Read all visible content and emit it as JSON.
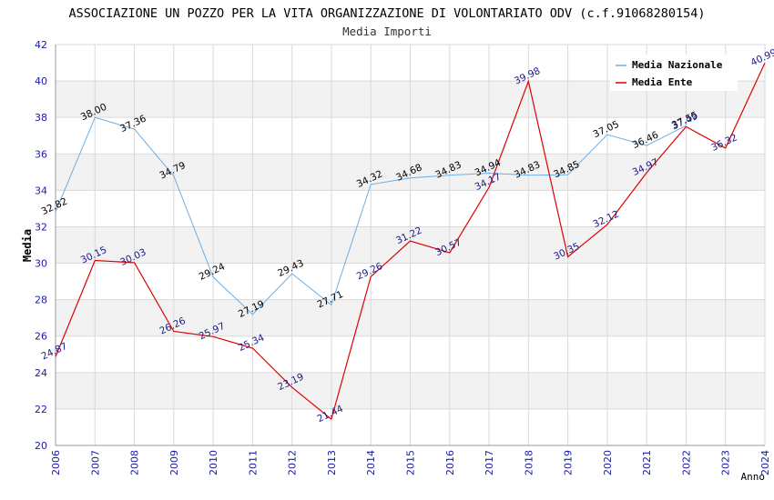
{
  "chart_data": {
    "type": "line",
    "title": "ASSOCIAZIONE UN POZZO PER LA VITA ORGANIZZAZIONE DI VOLONTARIATO ODV (c.f.91068280154)",
    "subtitle": "Media Importi",
    "xlabel": "Anno",
    "ylabel": "Media",
    "ylim": [
      20,
      42
    ],
    "yticks": [
      "20",
      "22",
      "24",
      "26",
      "28",
      "30",
      "32",
      "34",
      "36",
      "38",
      "40",
      "42"
    ],
    "categories": [
      "2006",
      "2007",
      "2008",
      "2009",
      "2010",
      "2011",
      "2012",
      "2013",
      "2014",
      "2015",
      "2016",
      "2017",
      "2018",
      "2019",
      "2020",
      "2021",
      "2022",
      "2023",
      "2024"
    ],
    "legend_position": "top-right",
    "series": [
      {
        "name": "Media Nazionale",
        "color": "#6aaee8",
        "label_color": "#000000",
        "values": [
          32.82,
          38.0,
          37.36,
          34.79,
          29.24,
          27.19,
          29.43,
          27.71,
          34.32,
          34.68,
          34.83,
          34.94,
          34.83,
          34.85,
          37.05,
          36.46,
          37.55,
          null,
          null
        ],
        "labels": [
          "32.82",
          "38.00",
          "37.36",
          "34.79",
          "29.24",
          "27.19",
          "29.43",
          "27.71",
          "34.32",
          "34.68",
          "34.83",
          "34.94",
          "34.83",
          "34.85",
          "37.05",
          "36.46",
          "37.55",
          "",
          ""
        ]
      },
      {
        "name": "Media Ente",
        "color": "#e00000",
        "label_color": "#1a1a8c",
        "values": [
          24.87,
          30.15,
          30.03,
          26.26,
          25.97,
          25.34,
          23.19,
          21.44,
          29.26,
          31.22,
          30.57,
          34.17,
          39.98,
          30.35,
          32.12,
          34.97,
          37.49,
          36.32,
          40.99
        ],
        "labels": [
          "24.87",
          "30.15",
          "30.03",
          "26.26",
          "25.97",
          "25.34",
          "23.19",
          "21.44",
          "29.26",
          "31.22",
          "30.57",
          "34.17",
          "39.98",
          "30.35",
          "32.12",
          "34.97",
          "37.49",
          "36.32",
          "40.99"
        ]
      }
    ]
  }
}
